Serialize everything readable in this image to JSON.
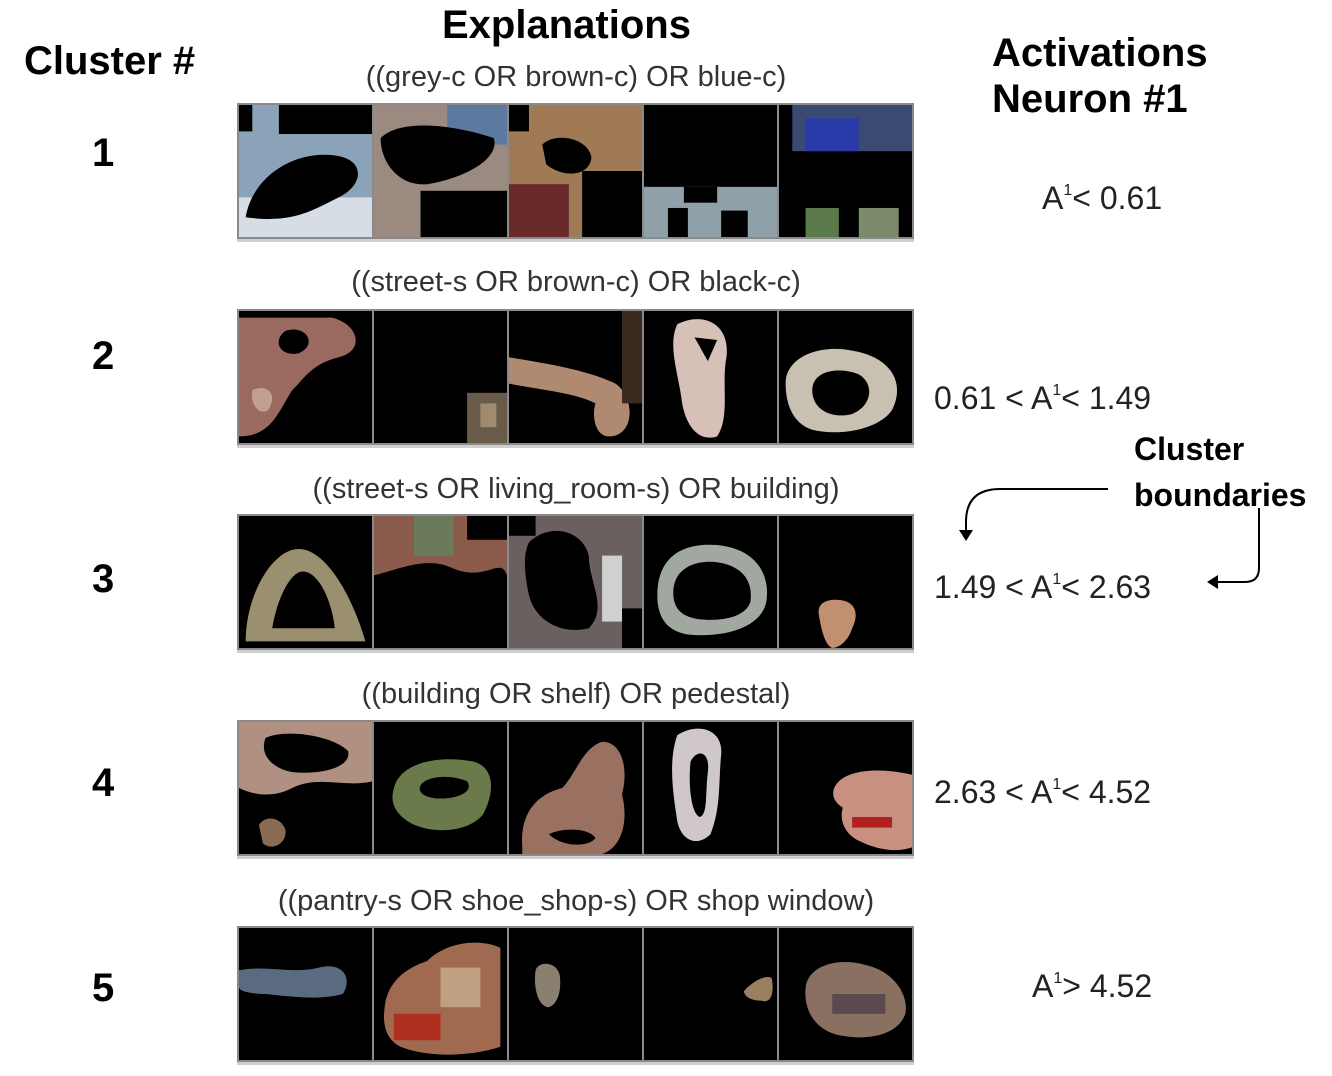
{
  "headers": {
    "cluster": "Cluster #",
    "explanations": "Explanations",
    "activations": "Activations\nNeuron #1"
  },
  "boundary_label": "Cluster\nboundaries",
  "clusters": [
    {
      "number": "1",
      "explanation": "((grey-c OR brown-c) OR blue-c)",
      "act_prefix": "A",
      "act_sup": "1",
      "act_suffix": "< 0.61"
    },
    {
      "number": "2",
      "explanation": "((street-s OR brown-c) OR black-c)",
      "act_prefix": "0.61 < A",
      "act_sup": "1",
      "act_suffix": "< 1.49"
    },
    {
      "number": "3",
      "explanation": "((street-s OR living_room-s) OR building)",
      "act_prefix": "1.49 < A",
      "act_sup": "1",
      "act_suffix": "< 2.63"
    },
    {
      "number": "4",
      "explanation": "((building OR shelf) OR pedestal)",
      "act_prefix": "2.63 < A",
      "act_sup": "1",
      "act_suffix": "< 4.52"
    },
    {
      "number": "5",
      "explanation": "((pantry-s OR shoe_shop-s) OR shop window)",
      "act_prefix": "A",
      "act_sup": "1",
      "act_suffix": "> 4.52"
    }
  ]
}
